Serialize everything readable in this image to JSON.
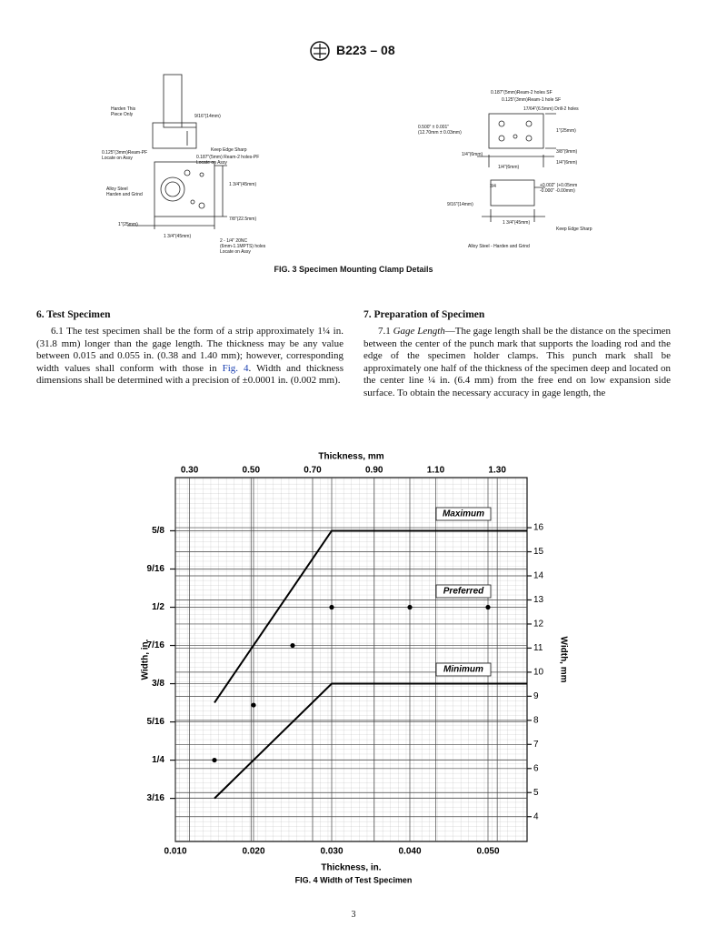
{
  "header": {
    "designation": "B223 – 08"
  },
  "fig3": {
    "caption": "FIG. 3 Specimen Mounting Clamp Details",
    "labels": [
      "Harden This\nPiece Only",
      "9/16\"(14mm)",
      "Keep Edge Sharp",
      "0.125\"(3mm)Ream-PF\nLocate on Assy",
      "0.187\"(5mm) Ream-2 holes-PF\nLocate on Assy",
      "1 3/4\"(45mm)",
      "Alloy Steel\nHarden and Grind",
      "7/8\"(22.5mm)",
      "1\"(25mm)",
      "1 3/4\"(45mm)",
      "2 - 1/4\" 20NC\n(6mm-1.1MPTS) holes\nLocate on Assy",
      "0.187\"(5mm)Ream-2 holes SF",
      "0.125\"(3mm)Ream-1 hole SF",
      "17/64\"(6.5mm) Drill-2 holes",
      "0.500\" ± 0.001\"\n(12.70mm ± 0.03mm)",
      "1\"(25mm)",
      "1/4\"(6mm)",
      "3/8\"(9mm)",
      "1/4\"(6mm)",
      "1/4\"(6mm)",
      "3/4",
      "+0.002\" (+0.05mm\n-0.000\"  -0.00mm)",
      "9/16\"(14mm)",
      "1 3/4\"(45mm)",
      "Keep Edge Sharp",
      "Alloy Steel - Harden and Grind"
    ]
  },
  "sections": [
    {
      "heading": "6. Test Specimen",
      "number": "6.1",
      "text_before": "The test specimen shall be the form of a strip approximately 1¼ in. (31.8 mm) longer than the gage length. The thickness may be any value between 0.015 and 0.055 in. (0.38 and 1.40 mm); however, corresponding width values shall conform with those in",
      "link": "Fig. 4",
      "text_after": ". Width and thickness dimensions shall be determined with a precision of ±0.0001 in. (0.002 mm)."
    },
    {
      "heading": "7. Preparation of Specimen",
      "number": "7.1",
      "term": "Gage Length",
      "text": "—The gage length shall be the distance on the specimen between the center of the punch mark that supports the loading rod and the edge of the specimen holder clamps. This punch mark shall be approximately one half of the thickness of the specimen deep and located on the center line ¼ in. (6.4 mm) from the free end on low expansion side surface. To obtain the necessary accuracy in gage length, the"
    }
  ],
  "fig4": {
    "type": "line",
    "caption": "FIG. 4 Width of Test Specimen",
    "x_label": "Thickness, in.",
    "x2_label": "Thickness, mm",
    "y_label": "Width, in.",
    "y2_label": "Width, mm",
    "xlim": [
      0.01,
      0.055
    ],
    "xticks": [
      {
        "value": 0.01,
        "label": "0.010"
      },
      {
        "value": 0.02,
        "label": "0.020"
      },
      {
        "value": 0.03,
        "label": "0.030"
      },
      {
        "value": 0.04,
        "label": "0.040"
      },
      {
        "value": 0.05,
        "label": "0.050"
      }
    ],
    "x2lim": [
      0.254,
      1.397
    ],
    "x2ticks": [
      {
        "value": 0.3,
        "label": "0.30"
      },
      {
        "value": 0.5,
        "label": "0.50"
      },
      {
        "value": 0.7,
        "label": "0.70"
      },
      {
        "value": 0.9,
        "label": "0.90"
      },
      {
        "value": 1.1,
        "label": "1.10"
      },
      {
        "value": 1.3,
        "label": "1.30"
      }
    ],
    "ylim": [
      0.117,
      0.712
    ],
    "yticks": [
      {
        "value": 0.1875,
        "label": "3/16"
      },
      {
        "value": 0.25,
        "label": "1/4"
      },
      {
        "value": 0.3125,
        "label": "5/16"
      },
      {
        "value": 0.375,
        "label": "3/8"
      },
      {
        "value": 0.4375,
        "label": "7/16"
      },
      {
        "value": 0.5,
        "label": "1/2"
      },
      {
        "value": 0.5625,
        "label": "9/16"
      },
      {
        "value": 0.625,
        "label": "5/8"
      }
    ],
    "y2lim": [
      2.97,
      18.08
    ],
    "y2ticks": [
      4,
      5,
      6,
      7,
      8,
      9,
      10,
      11,
      12,
      13,
      14,
      15,
      16
    ],
    "grid": true,
    "series": [
      {
        "name": "Maximum",
        "type": "line",
        "color": "#000000",
        "x": [
          0.015,
          0.03,
          0.055
        ],
        "values": [
          0.344,
          0.625,
          0.625
        ]
      },
      {
        "name": "Preferred",
        "type": "scatter",
        "color": "#000000",
        "x": [
          0.015,
          0.02,
          0.025,
          0.03,
          0.04,
          0.05
        ],
        "values": [
          0.25,
          0.34,
          0.4375,
          0.5,
          0.5,
          0.5
        ]
      },
      {
        "name": "Minimum",
        "type": "line",
        "color": "#000000",
        "x": [
          0.015,
          0.03,
          0.055
        ],
        "values": [
          0.1875,
          0.375,
          0.375
        ]
      }
    ]
  },
  "page_number": "3"
}
